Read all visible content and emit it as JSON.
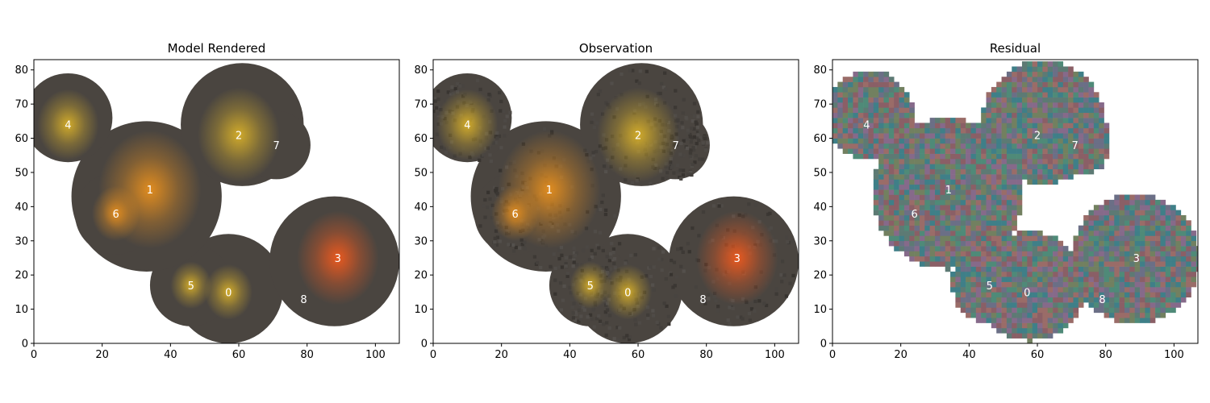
{
  "chart_data": [
    {
      "type": "heatmap",
      "title": "Model Rendered",
      "xlim": [
        0,
        107
      ],
      "ylim": [
        0,
        83
      ],
      "xticks": [
        0,
        20,
        40,
        60,
        80,
        100
      ],
      "yticks": [
        0,
        10,
        20,
        30,
        40,
        50,
        60,
        70,
        80
      ],
      "sources": [
        {
          "label": "0",
          "x": 57,
          "y": 15
        },
        {
          "label": "1",
          "x": 34,
          "y": 45
        },
        {
          "label": "2",
          "x": 60,
          "y": 61
        },
        {
          "label": "3",
          "x": 89,
          "y": 25
        },
        {
          "label": "4",
          "x": 10,
          "y": 64
        },
        {
          "label": "5",
          "x": 46,
          "y": 17
        },
        {
          "label": "6",
          "x": 24,
          "y": 38
        },
        {
          "label": "7",
          "x": 71,
          "y": 58
        },
        {
          "label": "8",
          "x": 79,
          "y": 13
        }
      ]
    },
    {
      "type": "heatmap",
      "title": "Observation",
      "xlim": [
        0,
        107
      ],
      "ylim": [
        0,
        83
      ],
      "xticks": [
        0,
        20,
        40,
        60,
        80,
        100
      ],
      "yticks": [
        0,
        10,
        20,
        30,
        40,
        50,
        60,
        70,
        80
      ],
      "sources": [
        {
          "label": "0",
          "x": 57,
          "y": 15
        },
        {
          "label": "1",
          "x": 34,
          "y": 45
        },
        {
          "label": "2",
          "x": 60,
          "y": 61
        },
        {
          "label": "3",
          "x": 89,
          "y": 25
        },
        {
          "label": "4",
          "x": 10,
          "y": 64
        },
        {
          "label": "5",
          "x": 46,
          "y": 17
        },
        {
          "label": "6",
          "x": 24,
          "y": 38
        },
        {
          "label": "7",
          "x": 71,
          "y": 58
        },
        {
          "label": "8",
          "x": 79,
          "y": 13
        }
      ]
    },
    {
      "type": "heatmap",
      "title": "Residual",
      "xlim": [
        0,
        107
      ],
      "ylim": [
        0,
        83
      ],
      "xticks": [
        0,
        20,
        40,
        60,
        80,
        100
      ],
      "yticks": [
        0,
        10,
        20,
        30,
        40,
        50,
        60,
        70,
        80
      ],
      "sources": [
        {
          "label": "0",
          "x": 57,
          "y": 15
        },
        {
          "label": "1",
          "x": 34,
          "y": 45
        },
        {
          "label": "2",
          "x": 60,
          "y": 61
        },
        {
          "label": "3",
          "x": 89,
          "y": 25
        },
        {
          "label": "4",
          "x": 10,
          "y": 64
        },
        {
          "label": "5",
          "x": 46,
          "y": 17
        },
        {
          "label": "6",
          "x": 24,
          "y": 38
        },
        {
          "label": "7",
          "x": 71,
          "y": 58
        },
        {
          "label": "8",
          "x": 79,
          "y": 13
        }
      ]
    }
  ],
  "colors": {
    "background": "#ffffff",
    "blob_base": "#4a4540",
    "core_orange": "#e8901e",
    "core_yellow": "#d8b02a",
    "core_red": "#f05a1e",
    "residual_palette": [
      "#5d7a74",
      "#8a5f66",
      "#6b6f86",
      "#4f8a78",
      "#9a6c68",
      "#728060",
      "#866a8a",
      "#3f7f88"
    ]
  }
}
